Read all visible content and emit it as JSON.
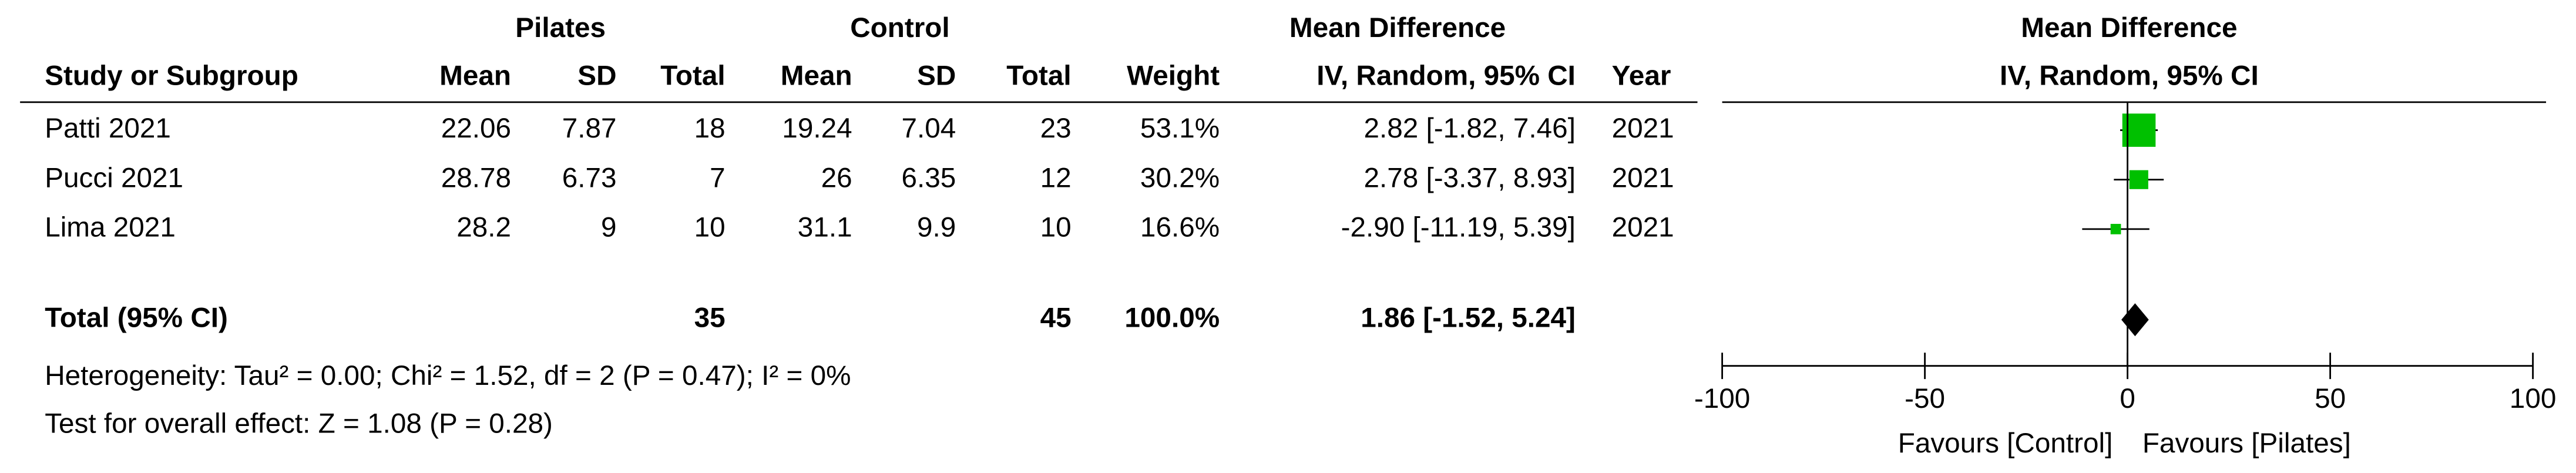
{
  "chart_data": {
    "type": "forest",
    "group_headers": [
      "Pilates",
      "Control",
      "Mean Difference"
    ],
    "columns": [
      "Study or Subgroup",
      "Mean",
      "SD",
      "Total",
      "Mean",
      "SD",
      "Total",
      "Weight",
      "IV, Random, 95% CI",
      "Year"
    ],
    "plot_header": [
      "Mean Difference",
      "IV, Random, 95% CI"
    ],
    "studies": [
      {
        "name": "Patti 2021",
        "pilates": [
          22.06,
          7.87,
          18
        ],
        "control": [
          19.24,
          7.04,
          23
        ],
        "weight": 53.1,
        "weight_label": "53.1%",
        "md": 2.82,
        "ci": [
          -1.82,
          7.46
        ],
        "ci_label": "2.82 [-1.82, 7.46]",
        "year": 2021
      },
      {
        "name": "Pucci 2021",
        "pilates": [
          28.78,
          6.73,
          7
        ],
        "control": [
          26,
          6.35,
          12
        ],
        "weight": 30.2,
        "weight_label": "30.2%",
        "md": 2.78,
        "ci": [
          -3.37,
          8.93
        ],
        "ci_label": "2.78 [-3.37, 8.93]",
        "year": 2021
      },
      {
        "name": "Lima 2021",
        "pilates": [
          28.2,
          9,
          10
        ],
        "control": [
          31.1,
          9.9,
          10
        ],
        "weight": 16.6,
        "weight_label": "16.6%",
        "md": -2.9,
        "ci": [
          -11.19,
          5.39
        ],
        "ci_label": "-2.90 [-11.19, 5.39]",
        "year": 2021
      }
    ],
    "total": {
      "name": "Total (95% CI)",
      "pilates_total": 35,
      "control_total": 45,
      "weight": 100,
      "weight_label": "100.0%",
      "md": 1.86,
      "ci": [
        -1.52,
        5.24
      ],
      "ci_label": "1.86 [-1.52, 5.24]"
    },
    "heterogeneity": "Heterogeneity: Tau² = 0.00; Chi² = 1.52, df = 2 (P = 0.47); I² = 0%",
    "overall_effect": "Test for overall effect: Z = 1.08 (P = 0.28)",
    "xlim": [
      -100,
      100
    ],
    "xticks": [
      -100,
      -50,
      0,
      50,
      100
    ],
    "favours": [
      "Favours [Control]",
      "Favours [Pilates]"
    ],
    "color": "#00c000"
  }
}
